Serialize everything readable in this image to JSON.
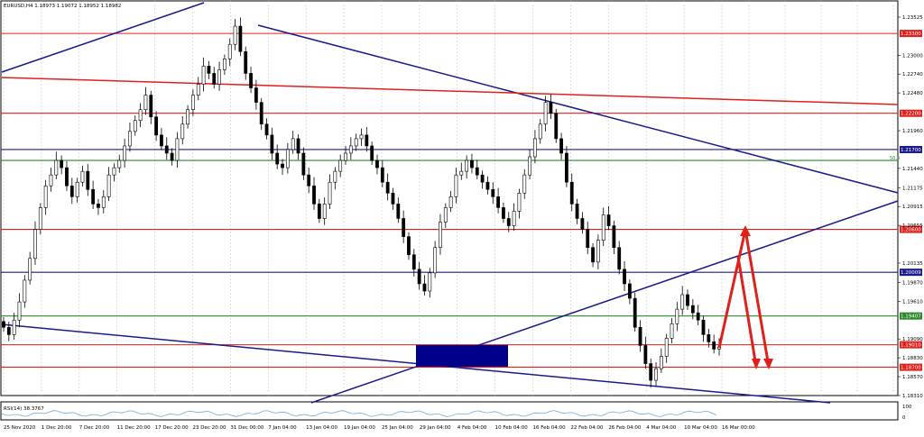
{
  "header": {
    "symbol_line": "EURUSD,H4  1.18973 1.19072 1.18952 1.18982"
  },
  "chart_data": {
    "type": "candlestick",
    "symbol": "EURUSD",
    "timeframe": "H4",
    "ohlc_last": {
      "open": 1.18973,
      "high": 1.19072,
      "low": 1.18952,
      "close": 1.18982
    },
    "price_axis_ticks": [
      "1.23525",
      "1.23000",
      "1.22740",
      "1.22480",
      "1.21960",
      "1.21440",
      "1.21175",
      "1.20915",
      "1.20655",
      "1.20135",
      "1.19870",
      "1.19610",
      "1.19090",
      "1.18830",
      "1.18570",
      "1.18310"
    ],
    "time_axis_ticks": [
      "25 Nov 2020",
      "1 Dec 20:00",
      "7 Dec 20:00",
      "11 Dec 20:00",
      "17 Dec 20:00",
      "23 Dec 20:00",
      "31 Dec 00:00",
      "7 Jan 04:00",
      "13 Jan 04:00",
      "19 Jan 04:00",
      "25 Jan 04:00",
      "29 Jan 04:00",
      "4 Feb 04:00",
      "10 Feb 04:00",
      "16 Feb 04:00",
      "22 Feb 04:00",
      "26 Feb 04:00",
      "4 Mar 04:00",
      "10 Mar 04:00",
      "16 Mar 00:00"
    ],
    "horizontal_levels": [
      {
        "price": "1.23300",
        "color": "#e0201a",
        "label_bg": "#e0201a"
      },
      {
        "price": "1.22200",
        "color": "#e0201a",
        "label_bg": "#e0201a"
      },
      {
        "price": "1.21700",
        "color": "#1a1a8c",
        "label_bg": "#1a1a8c"
      },
      {
        "price": "1.21550",
        "color": "#2a8a2a",
        "fib_label": "50.0",
        "label_bg": null
      },
      {
        "price": "1.20600",
        "color": "#e0201a",
        "label_bg": "#e0201a"
      },
      {
        "price": "1.20009",
        "color": "#1a1a8c",
        "label_bg": "#1a1a8c"
      },
      {
        "price": "1.19407",
        "color": "#2a8a2a",
        "label_bg": "#2a8a2a"
      },
      {
        "price": "1.19010",
        "color": "#e0201a",
        "label_bg": "#e0201a"
      },
      {
        "price": "1.18700",
        "color": "#e0201a",
        "label_bg": "#e0201a"
      }
    ],
    "close_series": [
      1.1925,
      1.1915,
      1.1935,
      1.196,
      1.199,
      1.202,
      1.206,
      1.209,
      1.212,
      1.2135,
      1.2155,
      1.2145,
      1.212,
      1.2105,
      1.2125,
      1.214,
      1.2115,
      1.2095,
      1.209,
      1.2105,
      1.2135,
      1.2145,
      1.2155,
      1.2175,
      1.2195,
      1.221,
      1.2225,
      1.2245,
      1.2215,
      1.219,
      1.2175,
      1.2165,
      1.2155,
      1.2185,
      1.2205,
      1.2225,
      1.2245,
      1.226,
      1.2285,
      1.2275,
      1.226,
      1.228,
      1.2295,
      1.2315,
      1.234,
      1.2305,
      1.2275,
      1.2255,
      1.2235,
      1.2205,
      1.219,
      1.2165,
      1.215,
      1.2145,
      1.217,
      1.2185,
      1.2165,
      1.2135,
      1.212,
      1.2095,
      1.2075,
      1.2095,
      1.2125,
      1.214,
      1.2155,
      1.2165,
      1.2175,
      1.2185,
      1.219,
      1.2175,
      1.2155,
      1.2145,
      1.2125,
      1.211,
      1.2095,
      1.2075,
      1.205,
      1.2025,
      1.2005,
      1.1985,
      1.1975,
      1.2,
      1.2035,
      1.207,
      1.209,
      1.2105,
      1.2135,
      1.214,
      1.2155,
      1.2145,
      1.2135,
      1.2125,
      1.2115,
      1.2105,
      1.209,
      1.2075,
      1.2065,
      1.2085,
      1.211,
      1.2135,
      1.216,
      1.2185,
      1.2205,
      1.2235,
      1.222,
      1.2185,
      1.2165,
      1.2125,
      1.2095,
      1.2075,
      1.206,
      1.2035,
      1.2015,
      1.2045,
      1.208,
      1.2065,
      1.2035,
      1.2005,
      1.1985,
      1.1965,
      1.1925,
      1.19,
      1.1875,
      1.1852,
      1.1868,
      1.1885,
      1.191,
      1.193,
      1.195,
      1.197,
      1.1955,
      1.1945,
      1.1935,
      1.1915,
      1.1905,
      1.1895,
      1.1898
    ],
    "indicator": {
      "label": "RSI(14) 38.3767",
      "levels": [
        "100",
        "0"
      ]
    },
    "trendlines": [
      "upper-left resistance rising",
      "descending resistance from January high",
      "long-term lower support",
      "rising support channel line"
    ],
    "annotations": [
      "shaded support zone",
      "red projection arrows"
    ]
  },
  "colors": {
    "candle": "#000000",
    "red_level": "#e0201a",
    "blue_level": "#1a1a8c",
    "green_level": "#2a8a2a",
    "zone": "#00008b",
    "arrow": "#e0201a",
    "rsi": "#6fa8dc"
  }
}
